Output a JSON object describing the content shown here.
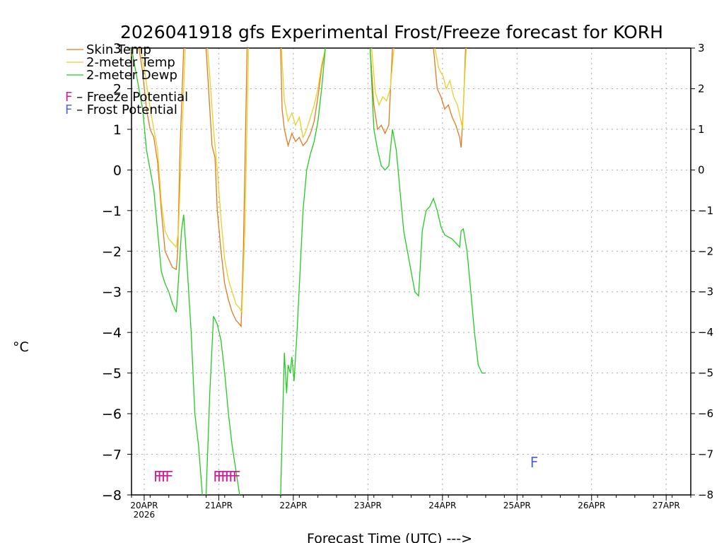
{
  "chart_data": {
    "type": "line",
    "title": "2026041918 gfs Experimental Frost/Freeze forecast for KORH",
    "ylabel": "°C",
    "xlabel": "Forecast Time (UTC) --->",
    "ylim": [
      -8,
      3
    ],
    "xlim": [
      0,
      7.5
    ],
    "y_ticks": [
      -8,
      -7,
      -6,
      -5,
      -4,
      -3,
      -2,
      -1,
      0,
      1,
      2,
      3
    ],
    "y_tick_labels": [
      "−8",
      "−7",
      "−6",
      "−5",
      "−4",
      "−3",
      "−2",
      "−1",
      "0",
      "1",
      "2",
      "3"
    ],
    "x_ticks": [
      0.17,
      1.17,
      2.17,
      3.17,
      4.17,
      5.17,
      6.17,
      7.17
    ],
    "x_tick_labels": [
      "20APR",
      "21APR",
      "22APR",
      "23APR",
      "24APR",
      "25APR",
      "26APR",
      "27APR"
    ],
    "x_sublabel": "2026",
    "grid": true,
    "legend": [
      {
        "name": "Skin Temp",
        "color": "#e07a1f"
      },
      {
        "name": "2-meter Temp",
        "color": "#e8d028"
      },
      {
        "name": "2-meter Dewp",
        "color": "#22cc22"
      }
    ],
    "potential_legend": [
      {
        "letter": "F",
        "text": " – Freeze Potential",
        "color": "#cc2299"
      },
      {
        "letter": "F",
        "text": " – Frost Potential",
        "color": "#5566dd"
      }
    ],
    "series": [
      {
        "name": "Skin Temp",
        "color": "#e07a1f",
        "segments": [
          [
            [
              0.0,
              2.8
            ],
            [
              0.02,
              3.0
            ]
          ],
          [
            [
              0.1,
              3.0
            ],
            [
              0.15,
              2.4
            ],
            [
              0.2,
              1.5
            ],
            [
              0.25,
              1.0
            ],
            [
              0.3,
              0.8
            ],
            [
              0.35,
              0.2
            ],
            [
              0.4,
              -1.0
            ],
            [
              0.45,
              -2.0
            ],
            [
              0.5,
              -2.2
            ],
            [
              0.55,
              -2.4
            ],
            [
              0.6,
              -2.45
            ],
            [
              0.62,
              -2.0
            ],
            [
              0.65,
              0.5
            ],
            [
              0.7,
              3.0
            ]
          ],
          [
            [
              1.0,
              3.0
            ],
            [
              1.05,
              1.5
            ],
            [
              1.08,
              0.6
            ],
            [
              1.12,
              0.3
            ],
            [
              1.15,
              -1.0
            ],
            [
              1.2,
              -2.0
            ],
            [
              1.25,
              -2.8
            ],
            [
              1.3,
              -3.2
            ],
            [
              1.35,
              -3.5
            ],
            [
              1.4,
              -3.7
            ],
            [
              1.45,
              -3.8
            ],
            [
              1.47,
              -3.85
            ],
            [
              1.5,
              -2.0
            ],
            [
              1.55,
              3.0
            ]
          ],
          [
            [
              2.0,
              3.0
            ],
            [
              2.02,
              1.5
            ],
            [
              2.05,
              1.0
            ],
            [
              2.1,
              0.6
            ],
            [
              2.15,
              0.9
            ],
            [
              2.2,
              0.7
            ],
            [
              2.25,
              0.8
            ],
            [
              2.3,
              0.6
            ],
            [
              2.35,
              0.7
            ],
            [
              2.4,
              0.9
            ],
            [
              2.45,
              1.2
            ],
            [
              2.5,
              1.8
            ],
            [
              2.55,
              2.5
            ],
            [
              2.6,
              3.0
            ]
          ],
          [
            [
              3.2,
              3.0
            ],
            [
              3.25,
              1.6
            ],
            [
              3.3,
              1.0
            ],
            [
              3.35,
              1.1
            ],
            [
              3.4,
              0.9
            ],
            [
              3.45,
              1.1
            ],
            [
              3.5,
              3.0
            ]
          ],
          [
            [
              4.05,
              3.0
            ],
            [
              4.1,
              2.0
            ],
            [
              4.15,
              1.8
            ],
            [
              4.2,
              1.5
            ],
            [
              4.25,
              1.6
            ],
            [
              4.3,
              1.3
            ],
            [
              4.35,
              1.1
            ],
            [
              4.4,
              0.8
            ],
            [
              4.42,
              0.55
            ],
            [
              4.45,
              1.5
            ],
            [
              4.48,
              3.0
            ]
          ]
        ]
      },
      {
        "name": "2-meter Temp",
        "color": "#e8d028",
        "segments": [
          [
            [
              0.0,
              2.9
            ],
            [
              0.03,
              3.0
            ]
          ],
          [
            [
              0.12,
              3.0
            ],
            [
              0.18,
              2.4
            ],
            [
              0.25,
              1.5
            ],
            [
              0.3,
              1.0
            ],
            [
              0.35,
              0.5
            ],
            [
              0.4,
              -0.8
            ],
            [
              0.45,
              -1.5
            ],
            [
              0.5,
              -1.7
            ],
            [
              0.55,
              -1.8
            ],
            [
              0.6,
              -1.9
            ],
            [
              0.63,
              -1.5
            ],
            [
              0.67,
              0.5
            ],
            [
              0.72,
              3.0
            ]
          ],
          [
            [
              1.02,
              3.0
            ],
            [
              1.07,
              1.8
            ],
            [
              1.1,
              1.0
            ],
            [
              1.15,
              0.0
            ],
            [
              1.2,
              -1.2
            ],
            [
              1.25,
              -2.2
            ],
            [
              1.3,
              -2.7
            ],
            [
              1.35,
              -3.0
            ],
            [
              1.4,
              -3.3
            ],
            [
              1.45,
              -3.4
            ],
            [
              1.48,
              -3.5
            ],
            [
              1.52,
              -1.5
            ],
            [
              1.57,
              3.0
            ]
          ],
          [
            [
              2.01,
              3.0
            ],
            [
              2.05,
              1.7
            ],
            [
              2.1,
              1.2
            ],
            [
              2.15,
              1.4
            ],
            [
              2.2,
              1.1
            ],
            [
              2.25,
              1.3
            ],
            [
              2.3,
              0.8
            ],
            [
              2.35,
              1.0
            ],
            [
              2.4,
              1.3
            ],
            [
              2.45,
              1.6
            ],
            [
              2.5,
              2.0
            ],
            [
              2.55,
              2.6
            ],
            [
              2.6,
              3.0
            ]
          ],
          [
            [
              3.22,
              3.0
            ],
            [
              3.27,
              1.9
            ],
            [
              3.32,
              1.6
            ],
            [
              3.37,
              1.8
            ],
            [
              3.42,
              1.7
            ],
            [
              3.47,
              2.0
            ],
            [
              3.52,
              3.0
            ]
          ],
          [
            [
              4.07,
              3.0
            ],
            [
              4.12,
              2.5
            ],
            [
              4.18,
              2.3
            ],
            [
              4.22,
              2.0
            ],
            [
              4.27,
              2.2
            ],
            [
              4.32,
              1.8
            ],
            [
              4.37,
              1.6
            ],
            [
              4.42,
              1.2
            ],
            [
              4.44,
              1.0
            ],
            [
              4.46,
              2.0
            ],
            [
              4.49,
              3.0
            ]
          ]
        ]
      },
      {
        "name": "2-meter Dewp",
        "color": "#22cc22",
        "segments": [
          [
            [
              0.0,
              3.0
            ],
            [
              0.05,
              2.5
            ],
            [
              0.1,
              2.0
            ],
            [
              0.15,
              1.5
            ],
            [
              0.2,
              0.5
            ],
            [
              0.25,
              0.0
            ],
            [
              0.3,
              -0.5
            ],
            [
              0.35,
              -1.5
            ],
            [
              0.4,
              -2.5
            ],
            [
              0.45,
              -2.8
            ],
            [
              0.5,
              -3.0
            ],
            [
              0.55,
              -3.3
            ],
            [
              0.6,
              -3.5
            ],
            [
              0.62,
              -3.0
            ],
            [
              0.67,
              -1.5
            ],
            [
              0.7,
              -1.1
            ],
            [
              0.75,
              -2.5
            ],
            [
              0.8,
              -4.0
            ],
            [
              0.85,
              -6.0
            ],
            [
              0.9,
              -6.8
            ],
            [
              0.95,
              -8.0
            ]
          ],
          [
            [
              1.0,
              -8.0
            ],
            [
              1.05,
              -5.5
            ],
            [
              1.1,
              -3.6
            ],
            [
              1.15,
              -3.8
            ],
            [
              1.2,
              -4.2
            ],
            [
              1.25,
              -5.0
            ],
            [
              1.3,
              -6.0
            ],
            [
              1.35,
              -6.8
            ],
            [
              1.4,
              -7.4
            ],
            [
              1.45,
              -8.0
            ]
          ],
          [
            [
              2.0,
              -8.0
            ],
            [
              2.05,
              -4.5
            ],
            [
              2.08,
              -5.5
            ],
            [
              2.1,
              -4.8
            ],
            [
              2.13,
              -5.0
            ],
            [
              2.15,
              -4.6
            ],
            [
              2.18,
              -5.2
            ],
            [
              2.22,
              -4.0
            ],
            [
              2.26,
              -2.5
            ],
            [
              2.3,
              -1.0
            ],
            [
              2.35,
              0.0
            ],
            [
              2.4,
              0.4
            ],
            [
              2.45,
              0.7
            ],
            [
              2.5,
              1.2
            ],
            [
              2.55,
              2.0
            ],
            [
              2.6,
              3.0
            ]
          ],
          [
            [
              3.2,
              3.0
            ],
            [
              3.25,
              1.0
            ],
            [
              3.3,
              0.5
            ],
            [
              3.35,
              0.1
            ],
            [
              3.4,
              0.0
            ],
            [
              3.45,
              0.1
            ],
            [
              3.5,
              1.0
            ],
            [
              3.55,
              0.5
            ],
            [
              3.6,
              -0.5
            ],
            [
              3.65,
              -1.5
            ],
            [
              3.7,
              -2.0
            ],
            [
              3.75,
              -2.5
            ],
            [
              3.8,
              -3.0
            ],
            [
              3.85,
              -3.1
            ],
            [
              3.9,
              -1.5
            ],
            [
              3.95,
              -1.0
            ],
            [
              4.0,
              -0.9
            ],
            [
              4.05,
              -0.7
            ],
            [
              4.1,
              -1.0
            ],
            [
              4.15,
              -1.4
            ],
            [
              4.2,
              -1.6
            ],
            [
              4.25,
              -1.65
            ],
            [
              4.3,
              -1.7
            ],
            [
              4.35,
              -1.8
            ],
            [
              4.4,
              -1.9
            ],
            [
              4.42,
              -1.5
            ],
            [
              4.45,
              -1.45
            ],
            [
              4.5,
              -2.0
            ],
            [
              4.55,
              -3.0
            ],
            [
              4.6,
              -4.0
            ],
            [
              4.65,
              -4.8
            ],
            [
              4.7,
              -5.0
            ],
            [
              4.75,
              -5.0
            ]
          ]
        ]
      }
    ],
    "freeze_marks": [
      {
        "label": "FFFF",
        "x": 0.4,
        "y": -7.55
      },
      {
        "label": "FFFFFF",
        "x": 1.25,
        "y": -7.55
      }
    ],
    "frost_marks": [
      {
        "label": "F",
        "x": 5.4,
        "y": -7.2
      }
    ]
  }
}
